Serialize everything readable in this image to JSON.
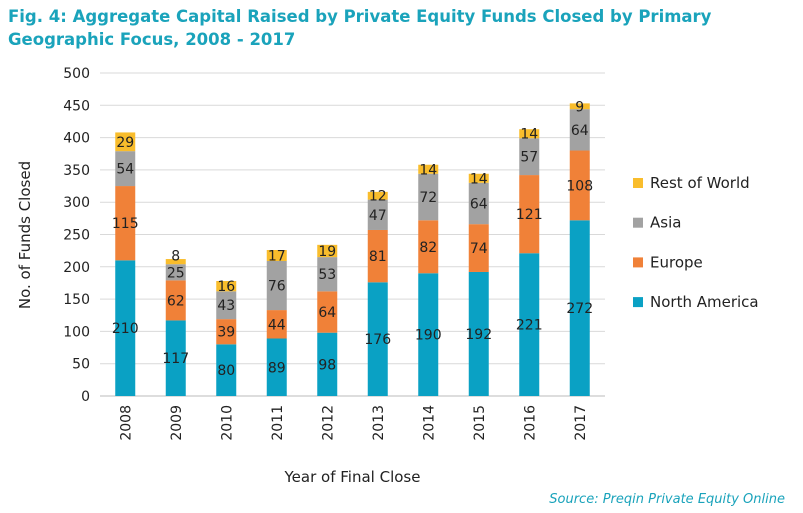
{
  "chart_data": {
    "type": "bar",
    "stacked": true,
    "title": "Fig. 4: Aggregate Capital Raised by Private Equity Funds Closed by Primary Geographic Focus, 2008 - 2017",
    "xlabel": "Year of Final Close",
    "ylabel": "No. of Funds Closed",
    "ylim": [
      0,
      500
    ],
    "yticks": [
      0,
      50,
      100,
      150,
      200,
      250,
      300,
      350,
      400,
      450,
      500
    ],
    "grid": true,
    "legend_position": "right",
    "categories": [
      "2008",
      "2009",
      "2010",
      "2011",
      "2012",
      "2013",
      "2014",
      "2015",
      "2016",
      "2017"
    ],
    "series": [
      {
        "name": "North America",
        "color": "#0aa1c4",
        "values": [
          210,
          117,
          80,
          89,
          98,
          176,
          190,
          192,
          221,
          272
        ]
      },
      {
        "name": "Europe",
        "color": "#f08138",
        "values": [
          115,
          62,
          39,
          44,
          64,
          81,
          82,
          74,
          121,
          108
        ]
      },
      {
        "name": "Asia",
        "color": "#a2a2a2",
        "values": [
          54,
          25,
          43,
          76,
          53,
          47,
          72,
          64,
          57,
          64
        ]
      },
      {
        "name": "Rest of World",
        "color": "#f9bd2c",
        "values": [
          29,
          8,
          16,
          17,
          19,
          12,
          14,
          14,
          14,
          9
        ]
      }
    ],
    "source": "Source: Preqin Private Equity Online"
  }
}
